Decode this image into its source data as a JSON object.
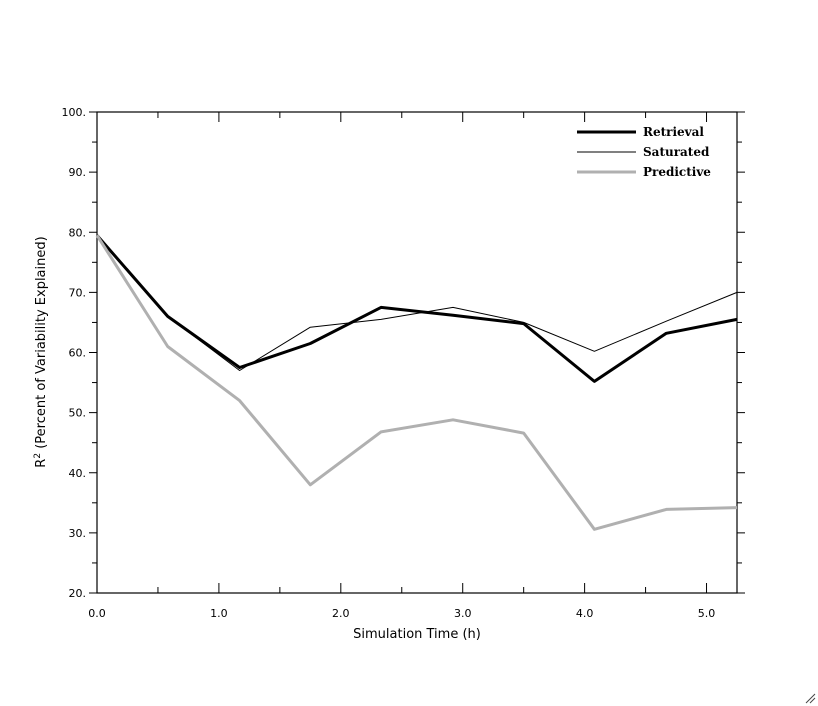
{
  "chart_data": {
    "type": "line",
    "xlabel": "Simulation Time (h)",
    "ylabel_prefix": "R",
    "ylabel_superscript": "2",
    "ylabel_suffix": " (Percent of Variability Explained)",
    "xlim": [
      0,
      5.25
    ],
    "ylim": [
      20,
      100
    ],
    "x_ticks": [
      "0.0",
      "1.0",
      "2.0",
      "3.0",
      "4.0",
      "5.0"
    ],
    "y_ticks": [
      "20.",
      "30.",
      "40.",
      "50.",
      "60.",
      "70.",
      "80.",
      "90.",
      "100."
    ],
    "legend_position": "top-right",
    "x": [
      0.0,
      0.58,
      1.17,
      1.75,
      2.33,
      2.92,
      3.5,
      4.08,
      4.67,
      5.25
    ],
    "series": [
      {
        "name": "Retrieval",
        "color": "#000000",
        "values": [
          79.5,
          66.0,
          57.5,
          61.5,
          67.5,
          66.2,
          64.8,
          55.2,
          63.2,
          65.5
        ]
      },
      {
        "name": "Saturated",
        "color": "#000000",
        "values": [
          79.5,
          66.0,
          57.0,
          64.2,
          65.5,
          67.5,
          65.0,
          60.2,
          65.2,
          70.0
        ]
      },
      {
        "name": "Predictive",
        "color": "#b0b0b0",
        "values": [
          79.5,
          61.0,
          52.0,
          38.0,
          46.8,
          48.8,
          46.6,
          30.6,
          33.9,
          34.2
        ]
      }
    ]
  }
}
